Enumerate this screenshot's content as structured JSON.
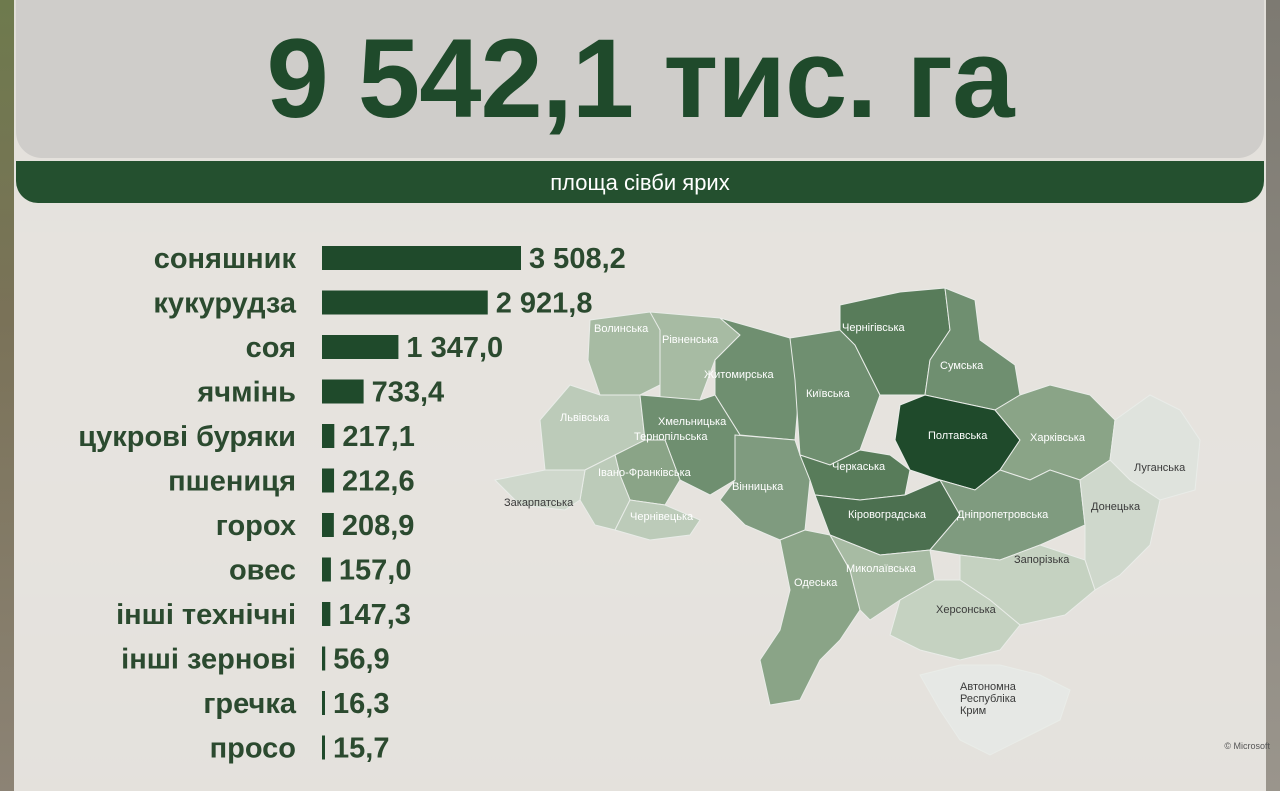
{
  "header": {
    "total": "9 542,1 тис. га",
    "subtitle": "площа сівби ярих"
  },
  "chart_data": {
    "type": "bar",
    "orientation": "horizontal",
    "categories": [
      "соняшник",
      "кукурудза",
      "соя",
      "ячмінь",
      "цукрові буряки",
      "пшениця",
      "горох",
      "овес",
      "інші технічні",
      "інші зернові",
      "гречка",
      "просо"
    ],
    "values": [
      3508.2,
      2921.8,
      1347.0,
      733.4,
      217.1,
      212.6,
      208.9,
      157.0,
      147.3,
      56.9,
      16.3,
      15.7
    ],
    "value_labels": [
      "3 508,2",
      "2 921,8",
      "1 347,0",
      "733,4",
      "217,1",
      "212,6",
      "208,9",
      "157,0",
      "147,3",
      "56,9",
      "16,3",
      "15,7"
    ],
    "color": "#1f4a2b",
    "title": "",
    "xlabel": "",
    "ylabel": ""
  },
  "map": {
    "regions": [
      {
        "name": "Волинська",
        "color": "#a7bba3"
      },
      {
        "name": "Рівненська",
        "color": "#a7bba3"
      },
      {
        "name": "Житомирська",
        "color": "#6f8f70"
      },
      {
        "name": "Київська",
        "color": "#6f8f70"
      },
      {
        "name": "Чернігівська",
        "color": "#587c5a"
      },
      {
        "name": "Сумська",
        "color": "#6f8f70"
      },
      {
        "name": "Львівська",
        "color": "#bccbb9"
      },
      {
        "name": "Хмельницька",
        "color": "#6f8f70"
      },
      {
        "name": "Тернопільська",
        "color": "#8aa487"
      },
      {
        "name": "Вінницька",
        "color": "#7f9b7f"
      },
      {
        "name": "Черкаська",
        "color": "#587c5a"
      },
      {
        "name": "Полтавська",
        "color": "#1f4a2b"
      },
      {
        "name": "Харківська",
        "color": "#8aa487"
      },
      {
        "name": "Луганська",
        "color": "#dfe3dd"
      },
      {
        "name": "Івано-Франківська",
        "color": "#bccbb9"
      },
      {
        "name": "Закарпатська",
        "color": "#cfd8cc"
      },
      {
        "name": "Чернівецька",
        "color": "#bccbb9"
      },
      {
        "name": "Кіровоградська",
        "color": "#4c7050"
      },
      {
        "name": "Дніпропетровська",
        "color": "#7f9b7f"
      },
      {
        "name": "Донецька",
        "color": "#cfd8cc"
      },
      {
        "name": "Одеська",
        "color": "#8aa487"
      },
      {
        "name": "Миколаївська",
        "color": "#a7bba3"
      },
      {
        "name": "Запорізька",
        "color": "#c5d2c1"
      },
      {
        "name": "Херсонська",
        "color": "#c5d2c1"
      },
      {
        "name": "Автономна Республіка Крим",
        "color": "#e6e8e5"
      }
    ],
    "copyright": "© Microsoft"
  }
}
